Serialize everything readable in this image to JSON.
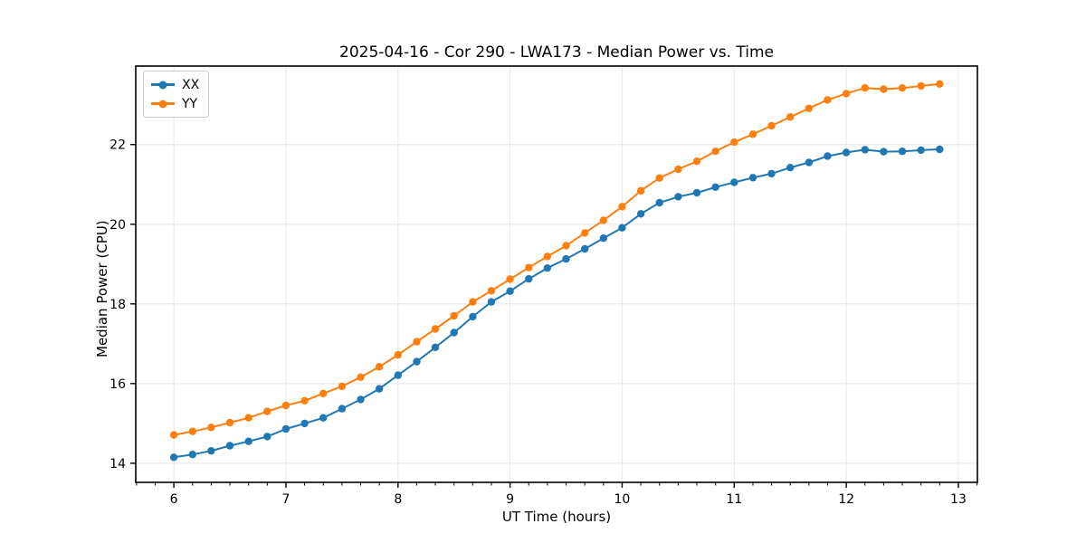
{
  "chart_data": {
    "type": "line",
    "title": "2025-04-16 - Cor 290 - LWA173 - Median Power vs. Time",
    "xlabel": "UT Time (hours)",
    "ylabel": "Median Power (CPU)",
    "grid": true,
    "legend_position": "upper left",
    "marker": "circle",
    "xlim": [
      5.66,
      13.17
    ],
    "ylim": [
      13.52,
      23.97
    ],
    "x_ticks": [
      6,
      7,
      8,
      9,
      10,
      11,
      12,
      13
    ],
    "y_ticks": [
      14,
      16,
      18,
      20,
      22
    ],
    "x_minor_step": 0.16667,
    "x": [
      6.0,
      6.167,
      6.333,
      6.5,
      6.667,
      6.833,
      7.0,
      7.167,
      7.333,
      7.5,
      7.667,
      7.833,
      8.0,
      8.167,
      8.333,
      8.5,
      8.667,
      8.833,
      9.0,
      9.167,
      9.333,
      9.5,
      9.667,
      9.833,
      10.0,
      10.167,
      10.333,
      10.5,
      10.667,
      10.833,
      11.0,
      11.167,
      11.333,
      11.5,
      11.667,
      11.833,
      12.0,
      12.167,
      12.333,
      12.5,
      12.667,
      12.833
    ],
    "series": [
      {
        "name": "XX",
        "color": "#1f77b4",
        "values": [
          14.15,
          14.22,
          14.31,
          14.44,
          14.55,
          14.67,
          14.86,
          15.0,
          15.14,
          15.37,
          15.6,
          15.87,
          16.21,
          16.55,
          16.91,
          17.28,
          17.68,
          18.05,
          18.32,
          18.63,
          18.9,
          19.13,
          19.38,
          19.65,
          19.91,
          20.26,
          20.54,
          20.69,
          20.79,
          20.93,
          21.05,
          21.17,
          21.27,
          21.42,
          21.55,
          21.71,
          21.8,
          21.87,
          21.82,
          21.83,
          21.86,
          21.88
        ]
      },
      {
        "name": "YY",
        "color": "#ff7f0e",
        "values": [
          14.71,
          14.8,
          14.9,
          15.02,
          15.14,
          15.3,
          15.45,
          15.57,
          15.75,
          15.93,
          16.16,
          16.42,
          16.72,
          17.05,
          17.37,
          17.7,
          18.05,
          18.33,
          18.62,
          18.91,
          19.19,
          19.46,
          19.78,
          20.1,
          20.44,
          20.84,
          21.16,
          21.38,
          21.58,
          21.83,
          22.06,
          22.26,
          22.47,
          22.69,
          22.91,
          23.12,
          23.28,
          23.42,
          23.39,
          23.42,
          23.47,
          23.52
        ]
      }
    ],
    "colors": {
      "grid": "#e7e7e7",
      "spine": "#000000",
      "tick_label": "#000000",
      "background": "#ffffff"
    }
  }
}
